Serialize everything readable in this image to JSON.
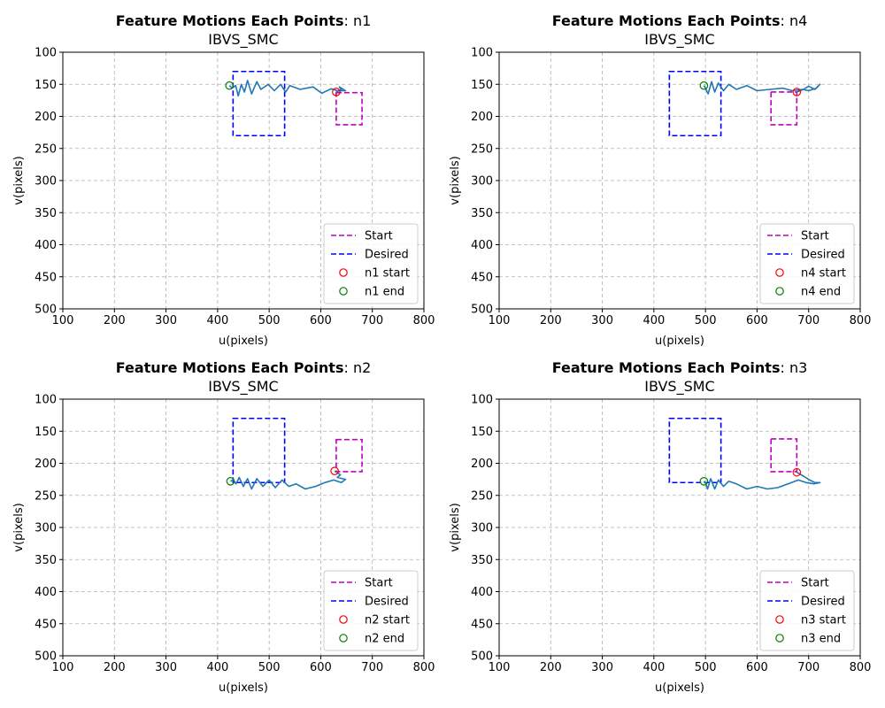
{
  "chart_data": [
    {
      "type": "line",
      "title_bold": "Feature Motions Each Points",
      "title_suffix": ": n1",
      "subtitle": "IBVS_SMC",
      "xlabel": "u(pixels)",
      "ylabel": "v(pixels)",
      "xlim": [
        100,
        800
      ],
      "ylim": [
        500,
        100
      ],
      "y_inverted": true,
      "xticks": [
        100,
        200,
        300,
        400,
        500,
        600,
        700,
        800
      ],
      "yticks": [
        100,
        150,
        200,
        250,
        300,
        350,
        400,
        450,
        500
      ],
      "grid": true,
      "legend_position": "lower-right",
      "legend": [
        "Start",
        "Desired",
        "n1 start",
        "n1 end"
      ],
      "start_box": {
        "u": [
          630,
          680
        ],
        "v": [
          163,
          213
        ]
      },
      "desired_box": {
        "u": [
          430,
          530
        ],
        "v": [
          130,
          230
        ]
      },
      "start_point": [
        630,
        162
      ],
      "end_point": [
        423,
        152
      ],
      "trajectory": [
        [
          630,
          162
        ],
        [
          640,
          158
        ],
        [
          636,
          154
        ],
        [
          648,
          160
        ],
        [
          632,
          160
        ],
        [
          620,
          157
        ],
        [
          602,
          164
        ],
        [
          585,
          154
        ],
        [
          560,
          158
        ],
        [
          540,
          152
        ],
        [
          532,
          162
        ],
        [
          522,
          150
        ],
        [
          510,
          160
        ],
        [
          498,
          150
        ],
        [
          484,
          158
        ],
        [
          476,
          146
        ],
        [
          466,
          165
        ],
        [
          458,
          144
        ],
        [
          452,
          162
        ],
        [
          446,
          150
        ],
        [
          440,
          168
        ],
        [
          435,
          152
        ],
        [
          428,
          156
        ],
        [
          423,
          152
        ]
      ],
      "colors": {
        "start": "#bf00bf",
        "desired": "#0000ff",
        "trajectory": "#1f77b4",
        "start_marker": "#ff0000",
        "end_marker": "#008000"
      }
    },
    {
      "type": "line",
      "title_bold": "Feature Motions Each Points",
      "title_suffix": ": n4",
      "subtitle": "IBVS_SMC",
      "xlabel": "u(pixels)",
      "ylabel": "v(pixels)",
      "xlim": [
        100,
        800
      ],
      "ylim": [
        500,
        100
      ],
      "y_inverted": true,
      "xticks": [
        100,
        200,
        300,
        400,
        500,
        600,
        700,
        800
      ],
      "yticks": [
        100,
        150,
        200,
        250,
        300,
        350,
        400,
        450,
        500
      ],
      "grid": true,
      "legend_position": "lower-right",
      "legend": [
        "Start",
        "Desired",
        "n4 start",
        "n4 end"
      ],
      "start_box": {
        "u": [
          627,
          677
        ],
        "v": [
          162,
          213
        ]
      },
      "desired_box": {
        "u": [
          430,
          530
        ],
        "v": [
          130,
          230
        ]
      },
      "start_point": [
        677,
        162
      ],
      "end_point": [
        497,
        152
      ],
      "trajectory": [
        [
          677,
          162
        ],
        [
          690,
          158
        ],
        [
          700,
          153
        ],
        [
          712,
          158
        ],
        [
          722,
          150
        ],
        [
          715,
          156
        ],
        [
          700,
          160
        ],
        [
          688,
          158
        ],
        [
          668,
          160
        ],
        [
          650,
          156
        ],
        [
          625,
          158
        ],
        [
          600,
          160
        ],
        [
          580,
          152
        ],
        [
          560,
          158
        ],
        [
          545,
          150
        ],
        [
          535,
          160
        ],
        [
          525,
          148
        ],
        [
          518,
          162
        ],
        [
          512,
          146
        ],
        [
          505,
          165
        ],
        [
          500,
          156
        ],
        [
          497,
          152
        ]
      ],
      "colors": {
        "start": "#bf00bf",
        "desired": "#0000ff",
        "trajectory": "#1f77b4",
        "start_marker": "#ff0000",
        "end_marker": "#008000"
      }
    },
    {
      "type": "line",
      "title_bold": "Feature Motions Each Points",
      "title_suffix": ": n2",
      "subtitle": "IBVS_SMC",
      "xlabel": "u(pixels)",
      "ylabel": "v(pixels)",
      "xlim": [
        100,
        800
      ],
      "ylim": [
        500,
        100
      ],
      "y_inverted": true,
      "xticks": [
        100,
        200,
        300,
        400,
        500,
        600,
        700,
        800
      ],
      "yticks": [
        100,
        150,
        200,
        250,
        300,
        350,
        400,
        450,
        500
      ],
      "grid": true,
      "legend_position": "lower-right",
      "legend": [
        "Start",
        "Desired",
        "n2 start",
        "n2 end"
      ],
      "start_box": {
        "u": [
          630,
          680
        ],
        "v": [
          163,
          213
        ]
      },
      "desired_box": {
        "u": [
          430,
          530
        ],
        "v": [
          130,
          230
        ]
      },
      "start_point": [
        627,
        212
      ],
      "end_point": [
        425,
        228
      ],
      "trajectory": [
        [
          627,
          212
        ],
        [
          638,
          218
        ],
        [
          632,
          222
        ],
        [
          648,
          225
        ],
        [
          640,
          230
        ],
        [
          625,
          226
        ],
        [
          608,
          230
        ],
        [
          590,
          236
        ],
        [
          570,
          240
        ],
        [
          552,
          232
        ],
        [
          538,
          236
        ],
        [
          525,
          226
        ],
        [
          512,
          238
        ],
        [
          500,
          226
        ],
        [
          488,
          236
        ],
        [
          476,
          224
        ],
        [
          466,
          240
        ],
        [
          458,
          224
        ],
        [
          450,
          236
        ],
        [
          442,
          222
        ],
        [
          436,
          232
        ],
        [
          430,
          226
        ],
        [
          425,
          228
        ]
      ],
      "colors": {
        "start": "#bf00bf",
        "desired": "#0000ff",
        "trajectory": "#1f77b4",
        "start_marker": "#ff0000",
        "end_marker": "#008000"
      }
    },
    {
      "type": "line",
      "title_bold": "Feature Motions Each Points",
      "title_suffix": ": n3",
      "subtitle": "IBVS_SMC",
      "xlabel": "u(pixels)",
      "ylabel": "v(pixels)",
      "xlim": [
        100,
        800
      ],
      "ylim": [
        500,
        100
      ],
      "y_inverted": true,
      "xticks": [
        100,
        200,
        300,
        400,
        500,
        600,
        700,
        800
      ],
      "yticks": [
        100,
        150,
        200,
        250,
        300,
        350,
        400,
        450,
        500
      ],
      "grid": true,
      "legend_position": "lower-right",
      "legend": [
        "Start",
        "Desired",
        "n3 start",
        "n3 end"
      ],
      "start_box": {
        "u": [
          627,
          677
        ],
        "v": [
          162,
          213
        ]
      },
      "desired_box": {
        "u": [
          430,
          530
        ],
        "v": [
          130,
          230
        ]
      },
      "start_point": [
        677,
        214
      ],
      "end_point": [
        497,
        228
      ],
      "trajectory": [
        [
          677,
          214
        ],
        [
          690,
          220
        ],
        [
          702,
          226
        ],
        [
          712,
          230
        ],
        [
          722,
          230
        ],
        [
          710,
          232
        ],
        [
          695,
          230
        ],
        [
          680,
          226
        ],
        [
          660,
          232
        ],
        [
          640,
          238
        ],
        [
          620,
          240
        ],
        [
          600,
          236
        ],
        [
          580,
          240
        ],
        [
          560,
          232
        ],
        [
          545,
          228
        ],
        [
          535,
          236
        ],
        [
          525,
          226
        ],
        [
          518,
          240
        ],
        [
          510,
          224
        ],
        [
          504,
          240
        ],
        [
          500,
          230
        ],
        [
          497,
          228
        ]
      ],
      "colors": {
        "start": "#bf00bf",
        "desired": "#0000ff",
        "trajectory": "#1f77b4",
        "start_marker": "#ff0000",
        "end_marker": "#008000"
      }
    }
  ]
}
